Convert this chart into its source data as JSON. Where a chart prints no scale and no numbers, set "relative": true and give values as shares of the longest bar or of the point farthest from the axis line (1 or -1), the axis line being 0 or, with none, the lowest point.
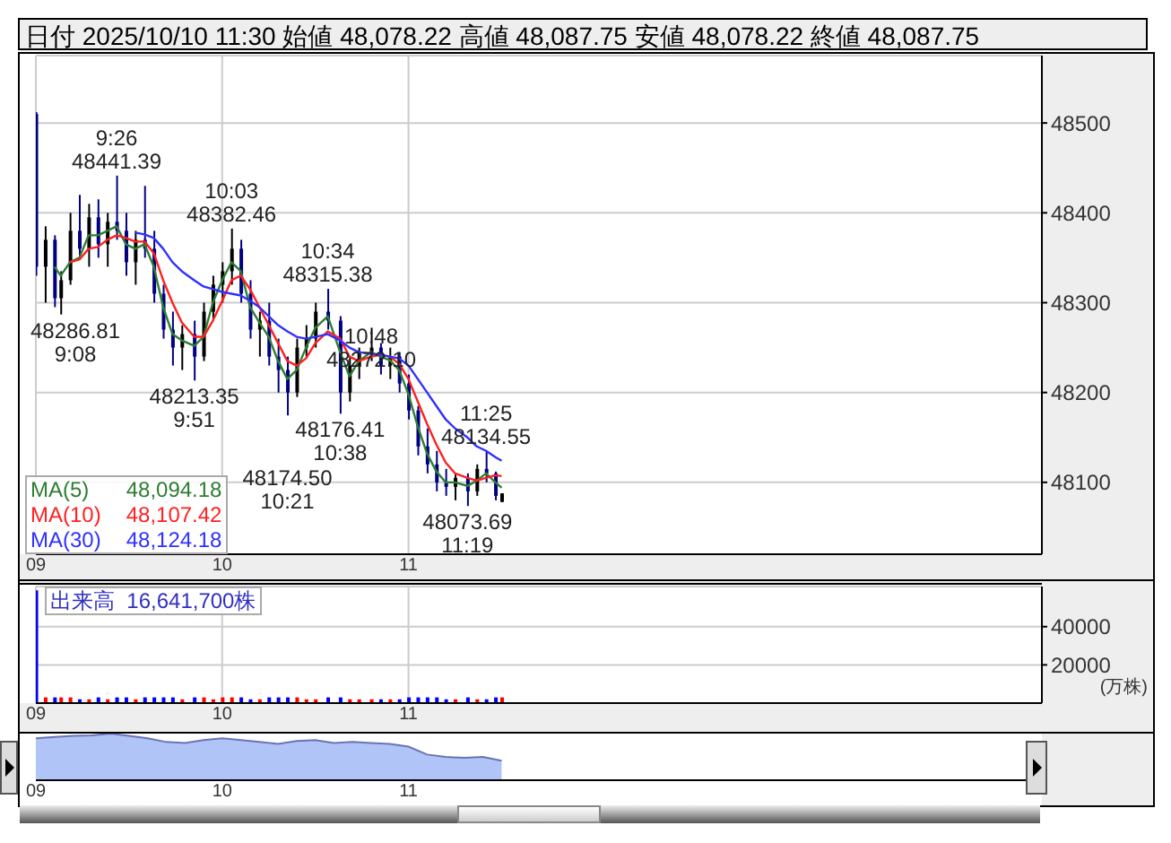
{
  "chart_data": [
    {
      "type": "candlestick",
      "title": "日付 2025/10/10 11:30 始値 48,078.22 高値 48,087.75 安値 48,078.22 終値 48,087.75",
      "x": [
        9,
        9.05,
        9.1,
        9.1333,
        9.1833,
        9.2333,
        9.2833,
        9.3333,
        9.3833,
        9.4333,
        9.4833,
        9.5333,
        9.5833,
        9.6333,
        9.6833,
        9.7333,
        9.7833,
        9.85,
        9.9,
        9.95,
        10,
        10.05,
        10.1,
        10.15,
        10.2,
        10.25,
        10.3,
        10.35,
        10.4,
        10.45,
        10.5,
        10.5667,
        10.6333,
        10.6833,
        10.7333,
        10.8,
        10.85,
        10.9,
        10.95,
        11,
        11.05,
        11.1,
        11.15,
        11.2,
        11.25,
        11.3167,
        11.3667,
        11.4167,
        11.4667,
        11.5
      ],
      "ohlc": [
        [
          48510,
          48512,
          48330,
          48340
        ],
        [
          48340,
          48385,
          48300,
          48370
        ],
        [
          48370,
          48375,
          48295,
          48305
        ],
        [
          48305,
          48335,
          48286.81,
          48325
        ],
        [
          48325,
          48400,
          48320,
          48380
        ],
        [
          48380,
          48420,
          48350,
          48360
        ],
        [
          48360,
          48410,
          48340,
          48395
        ],
        [
          48395,
          48415,
          48350,
          48365
        ],
        [
          48365,
          48400,
          48340,
          48390
        ],
        [
          48390,
          48441.39,
          48370,
          48380
        ],
        [
          48380,
          48400,
          48330,
          48345
        ],
        [
          48345,
          48380,
          48320,
          48370
        ],
        [
          48370,
          48430,
          48350,
          48360
        ],
        [
          48360,
          48380,
          48300,
          48310
        ],
        [
          48310,
          48320,
          48260,
          48270
        ],
        [
          48270,
          48290,
          48230,
          48250
        ],
        [
          48250,
          48275,
          48225,
          48265
        ],
        [
          48265,
          48280,
          48213.35,
          48240
        ],
        [
          48240,
          48300,
          48235,
          48290
        ],
        [
          48290,
          48330,
          48280,
          48320
        ],
        [
          48320,
          48345,
          48300,
          48335
        ],
        [
          48335,
          48382.46,
          48320,
          48360
        ],
        [
          48360,
          48370,
          48300,
          48310
        ],
        [
          48310,
          48325,
          48260,
          48270
        ],
        [
          48270,
          48290,
          48240,
          48280
        ],
        [
          48280,
          48300,
          48230,
          48240
        ],
        [
          48240,
          48260,
          48200,
          48225
        ],
        [
          48225,
          48240,
          48174.5,
          48200
        ],
        [
          48200,
          48260,
          48195,
          48250
        ],
        [
          48250,
          48275,
          48240,
          48260
        ],
        [
          48260,
          48300,
          48250,
          48290
        ],
        [
          48290,
          48315.38,
          48270,
          48280
        ],
        [
          48280,
          48285,
          48176.41,
          48200
        ],
        [
          48200,
          48240,
          48190,
          48230
        ],
        [
          48230,
          48250,
          48215,
          48245
        ],
        [
          48245,
          48272.1,
          48235,
          48250
        ],
        [
          48250,
          48255,
          48220,
          48230
        ],
        [
          48230,
          48250,
          48215,
          48240
        ],
        [
          48240,
          48245,
          48200,
          48210
        ],
        [
          48210,
          48220,
          48170,
          48180
        ],
        [
          48180,
          48185,
          48130,
          48140
        ],
        [
          48140,
          48160,
          48110,
          48120
        ],
        [
          48120,
          48135,
          48090,
          48100
        ],
        [
          48100,
          48115,
          48085,
          48095
        ],
        [
          48095,
          48110,
          48080,
          48105
        ],
        [
          48105,
          48110,
          48073.69,
          48090
        ],
        [
          48090,
          48120,
          48085,
          48115
        ],
        [
          48115,
          48134.55,
          48100,
          48110
        ],
        [
          48110,
          48112,
          48080,
          48085
        ],
        [
          48078.22,
          48087.75,
          48078.22,
          48087.75
        ]
      ],
      "colors": [
        "#000080",
        "#000000",
        "#000080",
        "#000000",
        "#000000",
        "#000080",
        "#000000",
        "#000080",
        "#000000",
        "#000080",
        "#000080",
        "#000000",
        "#000080",
        "#000080",
        "#000080",
        "#000080",
        "#000000",
        "#000080",
        "#000000",
        "#000000",
        "#000000",
        "#000000",
        "#000080",
        "#000080",
        "#000000",
        "#000080",
        "#000080",
        "#000080",
        "#000000",
        "#000000",
        "#000000",
        "#000080",
        "#000080",
        "#000000",
        "#000000",
        "#000000",
        "#000080",
        "#000000",
        "#000080",
        "#000080",
        "#000080",
        "#000080",
        "#000080",
        "#000080",
        "#000000",
        "#000080",
        "#000000",
        "#000080",
        "#000080",
        "#000000"
      ],
      "series": [
        {
          "name": "MA(5)",
          "type": "line",
          "color": "#2e7d32",
          "values": [
            null,
            null,
            48340,
            48330,
            48345,
            48350,
            48375,
            48375,
            48380,
            48385,
            48365,
            48360,
            48365,
            48340,
            48295,
            48265,
            48258,
            48252,
            48262,
            48300,
            48325,
            48345,
            48335,
            48295,
            48278,
            48262,
            48235,
            48215,
            48225,
            48250,
            48272,
            48285,
            48245,
            48218,
            48235,
            48245,
            48240,
            48236,
            48225,
            48198,
            48162,
            48132,
            48112,
            48100,
            48100,
            48096,
            48102,
            48110,
            48100,
            48094
          ]
        },
        {
          "name": "MA(10)",
          "type": "line",
          "color": "#ff2020",
          "values": [
            null,
            null,
            null,
            null,
            48345,
            48348,
            48360,
            48362,
            48370,
            48375,
            48372,
            48368,
            48368,
            48355,
            48325,
            48300,
            48278,
            48262,
            48262,
            48280,
            48302,
            48325,
            48330,
            48315,
            48295,
            48275,
            48255,
            48235,
            48230,
            48238,
            48255,
            48268,
            48260,
            48240,
            48235,
            48240,
            48242,
            48240,
            48232,
            48215,
            48190,
            48165,
            48142,
            48122,
            48110,
            48105,
            48102,
            48105,
            48108,
            48107
          ]
        },
        {
          "name": "MA(30)",
          "type": "line",
          "color": "#3030ff",
          "values": [
            null,
            null,
            null,
            null,
            null,
            null,
            null,
            null,
            null,
            null,
            null,
            48378,
            48376,
            48372,
            48360,
            48345,
            48335,
            48325,
            48318,
            48315,
            48312,
            48310,
            48308,
            48302,
            48295,
            48285,
            48275,
            48268,
            48262,
            48260,
            48262,
            48265,
            48258,
            48250,
            48245,
            48243,
            48242,
            48240,
            48238,
            48230,
            48215,
            48200,
            48185,
            48170,
            48160,
            48150,
            48140,
            48135,
            48128,
            48124
          ]
        }
      ],
      "xlim": [
        9,
        14.4
      ],
      "xticks": [
        {
          "value": 9,
          "label": "09"
        },
        {
          "value": 10,
          "label": "10"
        },
        {
          "value": 11,
          "label": "11"
        }
      ],
      "ylim": [
        48020,
        48575
      ],
      "yticks": [
        48100,
        48200,
        48300,
        48400,
        48500
      ],
      "grid": true,
      "legend": "bottom left",
      "annotations": [
        {
          "text": "48286.81\n9:08",
          "x": 9.1333,
          "y": 48286.81
        },
        {
          "text": "9:26\n48441.39",
          "x": 9.4333,
          "y": 48441.39
        },
        {
          "text": "48213.35\n9:51",
          "x": 9.85,
          "y": 48213.35
        },
        {
          "text": "10:03\n48382.46",
          "x": 10.05,
          "y": 48382.46
        },
        {
          "text": "48174.50\n10:21",
          "x": 10.35,
          "y": 48174.5
        },
        {
          "text": "10:34\n48315.38",
          "x": 10.5667,
          "y": 48315.38
        },
        {
          "text": "48176.41\n10:38",
          "x": 10.6333,
          "y": 48176.41
        },
        {
          "text": "10:48\n48272.10",
          "x": 10.8,
          "y": 48272.1
        },
        {
          "text": "48073.69\n11:19",
          "x": 11.3167,
          "y": 48073.69
        },
        {
          "text": "11:25\n48134.55",
          "x": 11.4167,
          "y": 48134.55
        },
        "48,094.18",
        "48,107.42",
        "48,124.18"
      ]
    },
    {
      "type": "bar",
      "title": "出来高  16,641,700株",
      "ylabel": "(万株)",
      "x": [
        9,
        9.05,
        9.1,
        9.1333,
        9.1833,
        9.2333,
        9.2833,
        9.3333,
        9.3833,
        9.4333,
        9.4833,
        9.5333,
        9.5833,
        9.6333,
        9.6833,
        9.7333,
        9.7833,
        9.85,
        9.9,
        9.95,
        10,
        10.05,
        10.1,
        10.15,
        10.2,
        10.25,
        10.3,
        10.35,
        10.4,
        10.45,
        10.5,
        10.5667,
        10.6333,
        10.6833,
        10.7333,
        10.8,
        10.85,
        10.9,
        10.95,
        11,
        11.05,
        11.1,
        11.15,
        11.2,
        11.25,
        11.3167,
        11.3667,
        11.4167,
        11.4667,
        11.5
      ],
      "values": [
        59000,
        3000,
        3000,
        3000,
        3000,
        2000,
        2000,
        3000,
        2000,
        3000,
        3000,
        2000,
        3000,
        3000,
        3000,
        3000,
        2000,
        3000,
        3000,
        2000,
        3000,
        3000,
        3000,
        2000,
        2000,
        3000,
        3000,
        3000,
        3000,
        2000,
        2000,
        3000,
        3000,
        2000,
        2000,
        2000,
        2000,
        2000,
        2000,
        3000,
        3000,
        3000,
        3000,
        2000,
        2000,
        3000,
        2000,
        2000,
        3000,
        3000
      ],
      "colors": [
        "#0000ff",
        "#ff0000",
        "#0000ff",
        "#ff0000",
        "#ff0000",
        "#0000ff",
        "#ff0000",
        "#0000ff",
        "#ff0000",
        "#0000ff",
        "#0000ff",
        "#ff0000",
        "#0000ff",
        "#0000ff",
        "#0000ff",
        "#0000ff",
        "#ff0000",
        "#0000ff",
        "#ff0000",
        "#ff0000",
        "#ff0000",
        "#ff0000",
        "#0000ff",
        "#0000ff",
        "#ff0000",
        "#0000ff",
        "#0000ff",
        "#0000ff",
        "#ff0000",
        "#ff0000",
        "#ff0000",
        "#0000ff",
        "#0000ff",
        "#ff0000",
        "#ff0000",
        "#ff0000",
        "#0000ff",
        "#ff0000",
        "#0000ff",
        "#0000ff",
        "#0000ff",
        "#0000ff",
        "#0000ff",
        "#0000ff",
        "#ff0000",
        "#0000ff",
        "#ff0000",
        "#0000ff",
        "#0000ff",
        "#ff0000"
      ],
      "xlim": [
        9,
        14.4
      ],
      "xticks": [
        {
          "value": 9,
          "label": "09"
        },
        {
          "value": 10,
          "label": "10"
        },
        {
          "value": 11,
          "label": "11"
        }
      ],
      "ylim": [
        0,
        61000
      ],
      "yticks": [
        20000,
        40000
      ],
      "grid": true
    },
    {
      "type": "area",
      "relative": true,
      "color": "#b0c4f8",
      "x": [
        9,
        9.1,
        9.2,
        9.3,
        9.4,
        9.5,
        9.6,
        9.7,
        9.8,
        9.9,
        10,
        10.1,
        10.2,
        10.3,
        10.4,
        10.5,
        10.6,
        10.7,
        10.8,
        10.9,
        11,
        11.1,
        11.2,
        11.3,
        11.4,
        11.5
      ],
      "values": [
        0.9,
        0.93,
        0.95,
        0.96,
        1,
        0.95,
        0.9,
        0.82,
        0.8,
        0.86,
        0.9,
        0.86,
        0.82,
        0.78,
        0.84,
        0.86,
        0.8,
        0.82,
        0.8,
        0.78,
        0.72,
        0.55,
        0.5,
        0.48,
        0.5,
        0.42
      ],
      "xlim": [
        9,
        14.4
      ],
      "xticks": [
        {
          "value": 9,
          "label": "09"
        },
        {
          "value": 10,
          "label": "10"
        },
        {
          "value": 11,
          "label": "11"
        }
      ]
    }
  ]
}
